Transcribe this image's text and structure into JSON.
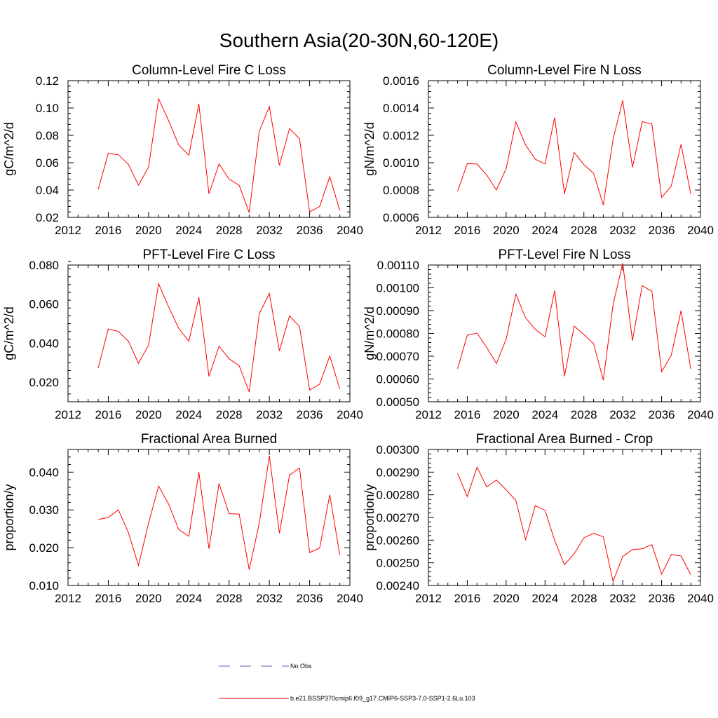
{
  "title": "Southern Asia(20-30N,60-120E)",
  "chart_data": [
    {
      "type": "line",
      "title": "Column-Level Fire C Loss",
      "ylabel": "gC/m^2/d",
      "xlim": [
        2012,
        2040
      ],
      "ylim": [
        0.02,
        0.12
      ],
      "xticks": [
        "2012",
        "2016",
        "2020",
        "2024",
        "2028",
        "2032",
        "2036",
        "2040"
      ],
      "yticks": [
        "0.02",
        "0.04",
        "0.06",
        "0.08",
        "0.10",
        "0.12"
      ],
      "color": "#ff0000",
      "x": [
        2015,
        2016,
        2017,
        2018,
        2019,
        2020,
        2021,
        2022,
        2023,
        2024,
        2025,
        2026,
        2027,
        2028,
        2029,
        2030,
        2031,
        2032,
        2033,
        2034,
        2035,
        2036,
        2037,
        2038,
        2039
      ],
      "values": [
        0.0405,
        0.0668,
        0.0658,
        0.0588,
        0.0435,
        0.0568,
        0.1068,
        0.0905,
        0.073,
        0.0655,
        0.103,
        0.0372,
        0.059,
        0.048,
        0.0435,
        0.0235,
        0.083,
        0.101,
        0.058,
        0.085,
        0.0775,
        0.024,
        0.028,
        0.0498,
        0.025
      ]
    },
    {
      "type": "line",
      "title": "Column-Level Fire N Loss",
      "ylabel": "gN/m^2/d",
      "xlim": [
        2012,
        2040
      ],
      "ylim": [
        0.0006,
        0.0016
      ],
      "xticks": [
        "2012",
        "2016",
        "2020",
        "2024",
        "2028",
        "2032",
        "2036",
        "2040"
      ],
      "yticks": [
        "0.0006",
        "0.0008",
        "0.0010",
        "0.0012",
        "0.0014",
        "0.0016"
      ],
      "color": "#ff0000",
      "x": [
        2015,
        2016,
        2017,
        2018,
        2019,
        2020,
        2021,
        2022,
        2023,
        2024,
        2025,
        2026,
        2027,
        2028,
        2029,
        2030,
        2031,
        2032,
        2033,
        2034,
        2035,
        2036,
        2037,
        2038,
        2039
      ],
      "values": [
        0.00079,
        0.000993,
        0.00099,
        0.00091,
        0.0008,
        0.000958,
        0.001298,
        0.00113,
        0.001025,
        0.00099,
        0.00133,
        0.000772,
        0.001075,
        0.000985,
        0.000923,
        0.00069,
        0.00117,
        0.001455,
        0.000965,
        0.0013,
        0.001282,
        0.000745,
        0.00083,
        0.001135,
        0.000772
      ]
    },
    {
      "type": "line",
      "title": "PFT-Level Fire C Loss",
      "ylabel": "gC/m^2/d",
      "xlim": [
        2012,
        2040
      ],
      "ylim": [
        0.01,
        0.08
      ],
      "xticks": [
        "2012",
        "2016",
        "2020",
        "2024",
        "2028",
        "2032",
        "2036",
        "2040"
      ],
      "yticks": [
        "0.020",
        "0.040",
        "0.060",
        "0.080"
      ],
      "color": "#ff0000",
      "x": [
        2015,
        2016,
        2017,
        2018,
        2019,
        2020,
        2021,
        2022,
        2023,
        2024,
        2025,
        2026,
        2027,
        2028,
        2029,
        2030,
        2031,
        2032,
        2033,
        2034,
        2035,
        2036,
        2037,
        2038,
        2039
      ],
      "values": [
        0.0273,
        0.0473,
        0.046,
        0.041,
        0.0297,
        0.039,
        0.0705,
        0.0585,
        0.0475,
        0.041,
        0.0635,
        0.023,
        0.0385,
        0.032,
        0.0285,
        0.015,
        0.055,
        0.0655,
        0.036,
        0.054,
        0.0485,
        0.016,
        0.019,
        0.0335,
        0.0165
      ]
    },
    {
      "type": "line",
      "title": "PFT-Level Fire N Loss",
      "ylabel": "gN/m^2/d",
      "xlim": [
        2012,
        2040
      ],
      "ylim": [
        0.0005,
        0.0011
      ],
      "xticks": [
        "2012",
        "2016",
        "2020",
        "2024",
        "2028",
        "2032",
        "2036",
        "2040"
      ],
      "yticks": [
        "0.00050",
        "0.00060",
        "0.00070",
        "0.00080",
        "0.00090",
        "0.00100",
        "0.00110"
      ],
      "color": "#ff0000",
      "x": [
        2015,
        2016,
        2017,
        2018,
        2019,
        2020,
        2021,
        2022,
        2023,
        2024,
        2025,
        2026,
        2027,
        2028,
        2029,
        2030,
        2031,
        2032,
        2033,
        2034,
        2035,
        2036,
        2037,
        2038,
        2039
      ],
      "values": [
        0.000645,
        0.000792,
        0.000802,
        0.000738,
        0.000668,
        0.000775,
        0.000972,
        0.000868,
        0.000818,
        0.000785,
        0.000988,
        0.000612,
        0.000832,
        0.000795,
        0.000755,
        0.000595,
        0.000925,
        0.001108,
        0.000768,
        0.00101,
        0.000985,
        0.000632,
        0.000705,
        0.0009,
        0.000645
      ]
    },
    {
      "type": "line",
      "title": "Fractional Area Burned",
      "ylabel": "proportion/y",
      "xlim": [
        2012,
        2040
      ],
      "ylim": [
        0.01,
        0.046
      ],
      "xticks": [
        "2012",
        "2016",
        "2020",
        "2024",
        "2028",
        "2032",
        "2036",
        "2040"
      ],
      "yticks": [
        "0.010",
        "0.020",
        "0.030",
        "0.040"
      ],
      "color": "#ff0000",
      "x": [
        2015,
        2016,
        2017,
        2018,
        2019,
        2020,
        2021,
        2022,
        2023,
        2024,
        2025,
        2026,
        2027,
        2028,
        2029,
        2030,
        2031,
        2032,
        2033,
        2034,
        2035,
        2036,
        2037,
        2038,
        2039
      ],
      "values": [
        0.0275,
        0.028,
        0.03,
        0.024,
        0.0153,
        0.0265,
        0.0363,
        0.0315,
        0.0248,
        0.023,
        0.04,
        0.0197,
        0.037,
        0.029,
        0.0289,
        0.0142,
        0.0265,
        0.0443,
        0.0238,
        0.0392,
        0.0411,
        0.0187,
        0.0199,
        0.034,
        0.0181
      ]
    },
    {
      "type": "line",
      "title": "Fractional Area Burned - Crop",
      "ylabel": "proportion/y",
      "xlim": [
        2012,
        2040
      ],
      "ylim": [
        0.0024,
        0.003
      ],
      "xticks": [
        "2012",
        "2016",
        "2020",
        "2024",
        "2028",
        "2032",
        "2036",
        "2040"
      ],
      "yticks": [
        "0.00240",
        "0.00250",
        "0.00260",
        "0.00270",
        "0.00280",
        "0.00290",
        "0.00300"
      ],
      "color": "#ff0000",
      "x": [
        2015,
        2016,
        2017,
        2018,
        2019,
        2020,
        2021,
        2022,
        2023,
        2024,
        2025,
        2026,
        2027,
        2028,
        2029,
        2030,
        2031,
        2032,
        2033,
        2034,
        2035,
        2036,
        2037,
        2038,
        2039
      ],
      "values": [
        0.002895,
        0.002792,
        0.002922,
        0.002835,
        0.002865,
        0.002822,
        0.002775,
        0.002602,
        0.002752,
        0.002732,
        0.002598,
        0.002492,
        0.00254,
        0.00261,
        0.00263,
        0.002615,
        0.002418,
        0.002528,
        0.002558,
        0.002562,
        0.00258,
        0.00245,
        0.002537,
        0.00253,
        0.002448
      ]
    }
  ],
  "legend": {
    "items": [
      {
        "label": "No Obs",
        "color": "#5566bb",
        "dash": true
      },
      {
        "label": "b.e21.BSSP370cmip6.f09_g17.CMIP6-SSP3-7.0-SSP1-2.6Lu.103",
        "color": "#ff0000",
        "dash": false
      }
    ]
  }
}
